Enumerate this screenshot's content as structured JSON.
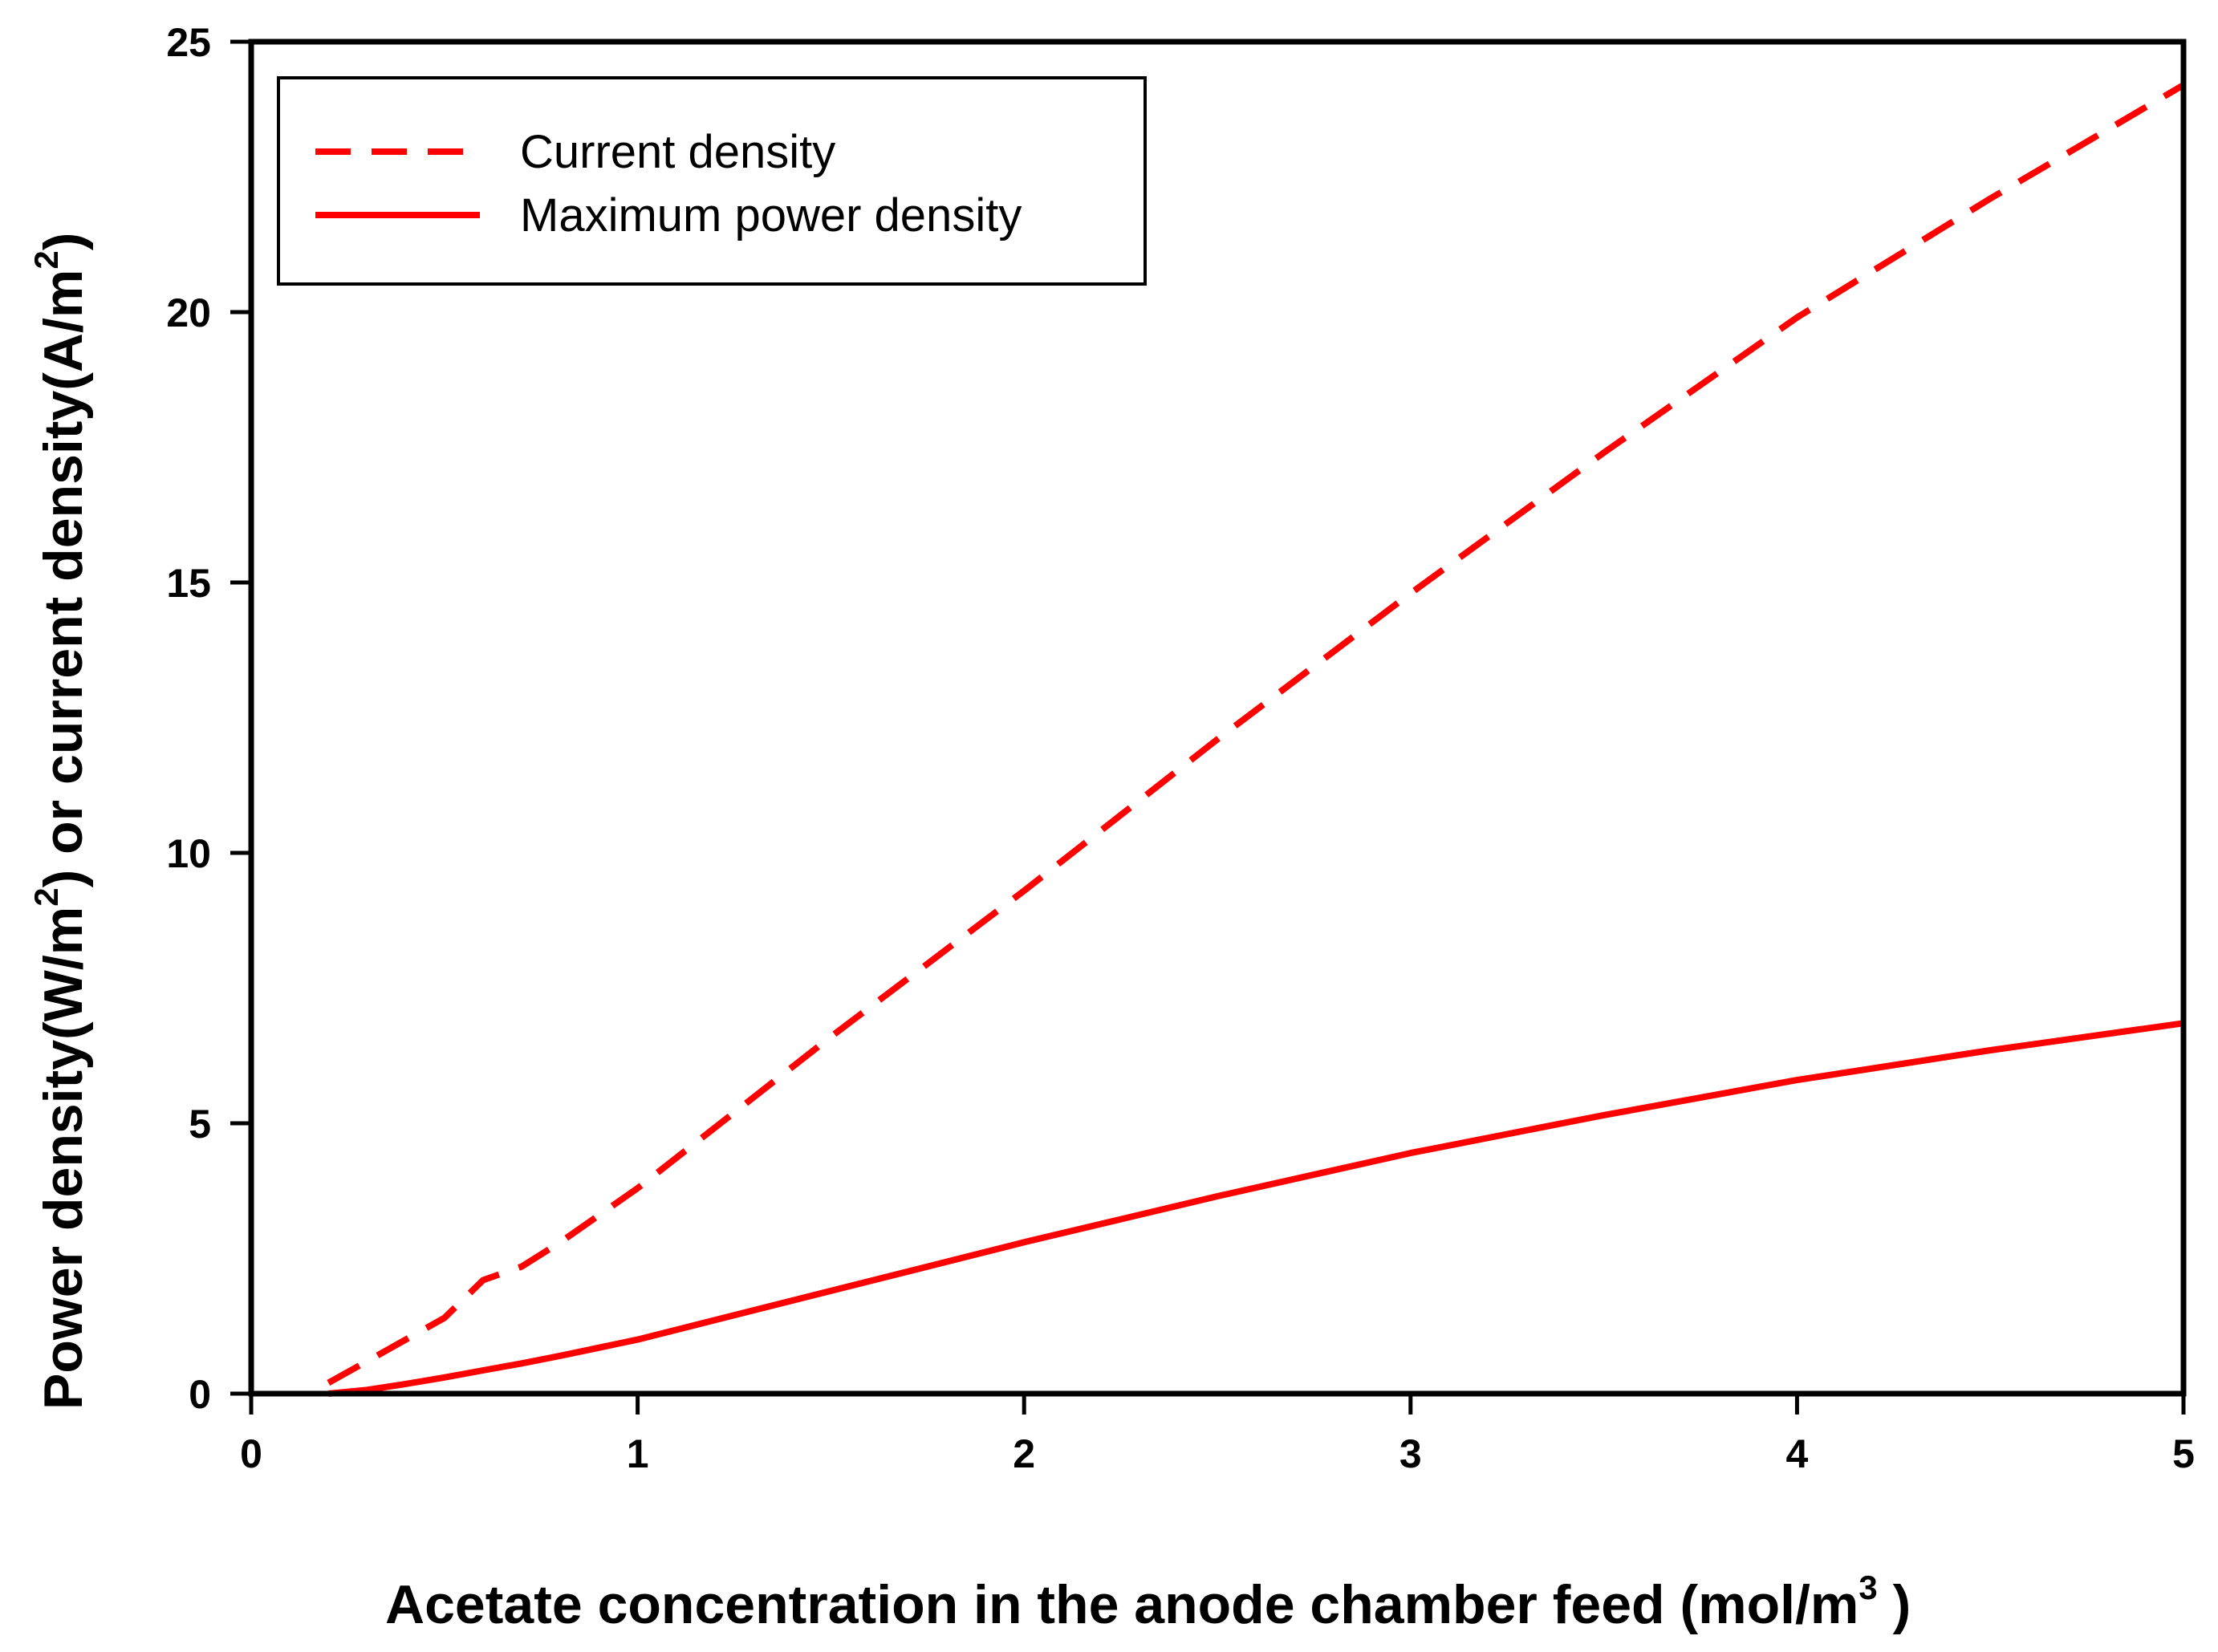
{
  "colors": {
    "series": "#ff0000",
    "axis": "#000000",
    "background": "#ffffff"
  },
  "chart_data": {
    "type": "line",
    "title": "",
    "xlabel": {
      "prefix": "Acetate concentration in the anode chamber feed (mol/m",
      "sup": "3",
      "suffix": " )"
    },
    "ylabel": {
      "part1": "Power density(W/m",
      "sup1": "2",
      "part2": ") or current density(A/m",
      "sup2": "2",
      "part3": ")"
    },
    "xlim": [
      0,
      5
    ],
    "ylim": [
      0,
      25
    ],
    "xticks": [
      0,
      1,
      2,
      3,
      4,
      5
    ],
    "xtick_labels": [
      "0",
      "1",
      "2",
      "3",
      "4",
      "5"
    ],
    "yticks": [
      0,
      5,
      10,
      15,
      20,
      25
    ],
    "ytick_labels": [
      "0",
      "5",
      "10",
      "15",
      "20",
      "25"
    ],
    "grid": false,
    "legend_position": "top-left",
    "series": [
      {
        "name": "Current density",
        "style": "dashed",
        "x": [
          0.2,
          0.3,
          0.4,
          0.5,
          0.6,
          0.7,
          0.8,
          1.0,
          1.5,
          2.0,
          2.5,
          3.0,
          3.5,
          4.0,
          4.5,
          5.0
        ],
        "y": [
          0.2,
          0.6,
          1.0,
          1.4,
          2.1,
          2.35,
          2.8,
          3.8,
          6.6,
          9.3,
          12.1,
          14.8,
          17.4,
          19.9,
          22.1,
          24.2
        ]
      },
      {
        "name": "Maximum power density",
        "style": "solid",
        "x": [
          0.2,
          0.3,
          0.4,
          0.5,
          0.6,
          0.7,
          0.8,
          1.0,
          1.5,
          2.0,
          2.5,
          3.0,
          3.5,
          4.0,
          4.5,
          5.0
        ],
        "y": [
          0.0,
          0.07,
          0.18,
          0.3,
          0.43,
          0.56,
          0.7,
          1.0,
          1.9,
          2.8,
          3.65,
          4.45,
          5.15,
          5.8,
          6.35,
          6.85
        ]
      }
    ]
  }
}
